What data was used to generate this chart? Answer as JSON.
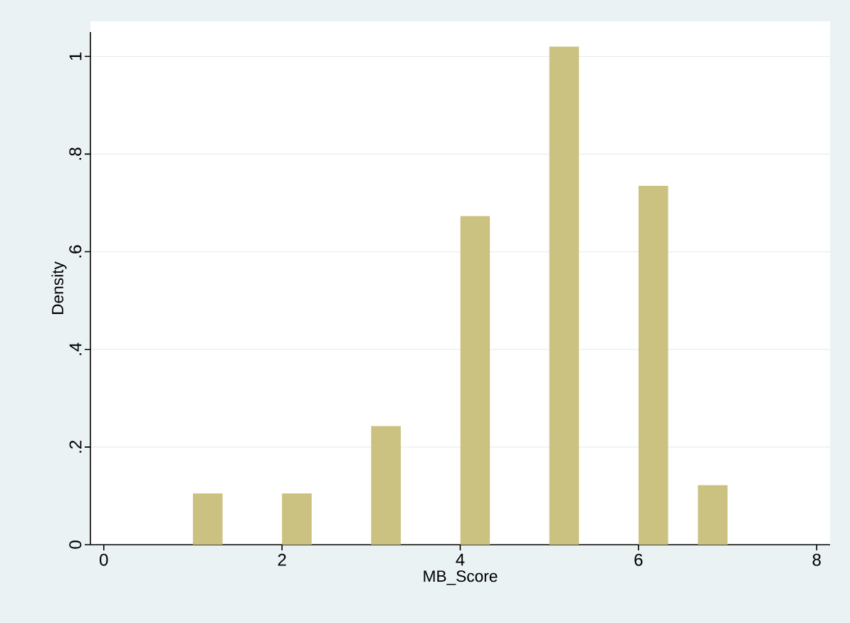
{
  "chart_data": {
    "type": "histogram",
    "xlabel": "MB_Score",
    "ylabel": "Density",
    "bins": [
      1,
      1.333,
      1.667,
      2,
      2.333,
      2.667,
      3,
      3.333,
      3.667,
      4,
      4.333,
      4.667,
      5,
      5.333,
      5.667,
      6,
      6.333,
      6.667,
      7
    ],
    "values": [
      0.105,
      0,
      0,
      0.105,
      0,
      0,
      0.243,
      0,
      0,
      0.673,
      0,
      0,
      1.02,
      0,
      0,
      0.735,
      0,
      0.122
    ],
    "color": "#cbc281",
    "xlim": [
      -0.15,
      8.15
    ],
    "ylim": [
      0,
      1.05
    ],
    "xticks": [
      0,
      2,
      4,
      6,
      8
    ],
    "yticks": [
      0,
      {
        "value": 0.2,
        "label": ".2"
      },
      {
        "value": 0.4,
        "label": ".4"
      },
      {
        "value": 0.6,
        "label": ".6"
      },
      {
        "value": 0.8,
        "label": ".8"
      },
      1
    ],
    "grid": "y"
  }
}
